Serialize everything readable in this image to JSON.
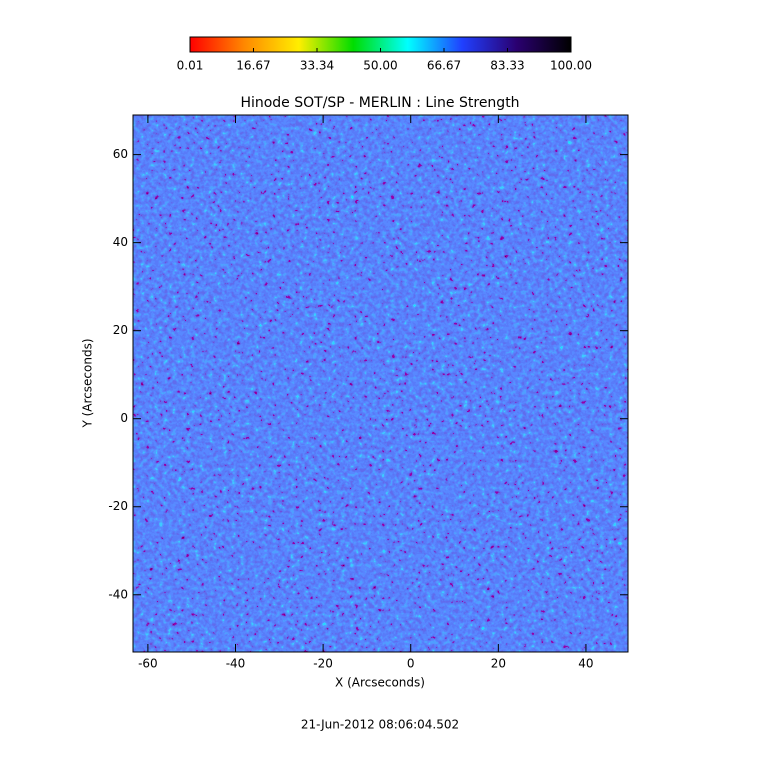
{
  "chart_data": {
    "type": "heatmap",
    "title": "Hinode SOT/SP - MERLIN : Line Strength",
    "xlabel": "X (Arcseconds)",
    "ylabel": "Y (Arcseconds)",
    "xlim": [
      -63.4,
      49.6
    ],
    "xticks": [
      -60,
      -40,
      -20,
      0,
      20,
      40
    ],
    "ylim": [
      -53,
      69
    ],
    "yticks": [
      -40,
      -20,
      0,
      20,
      40,
      60
    ],
    "colorbar": {
      "lim": [
        0.01,
        100
      ],
      "ticks": [
        0.01,
        16.67,
        33.34,
        {
          "value": 50,
          "label": "50.00"
        },
        66.67,
        83.33,
        {
          "value": 100,
          "label": "100.00"
        }
      ],
      "colors": [
        "#ff0000",
        "#ff8800",
        "#ffee00",
        "#00dd00",
        "#00ffff",
        "#2040ff",
        "#2a0070",
        "#000000"
      ]
    },
    "timestamp": "21-Jun-2012 08:06:04.502"
  }
}
